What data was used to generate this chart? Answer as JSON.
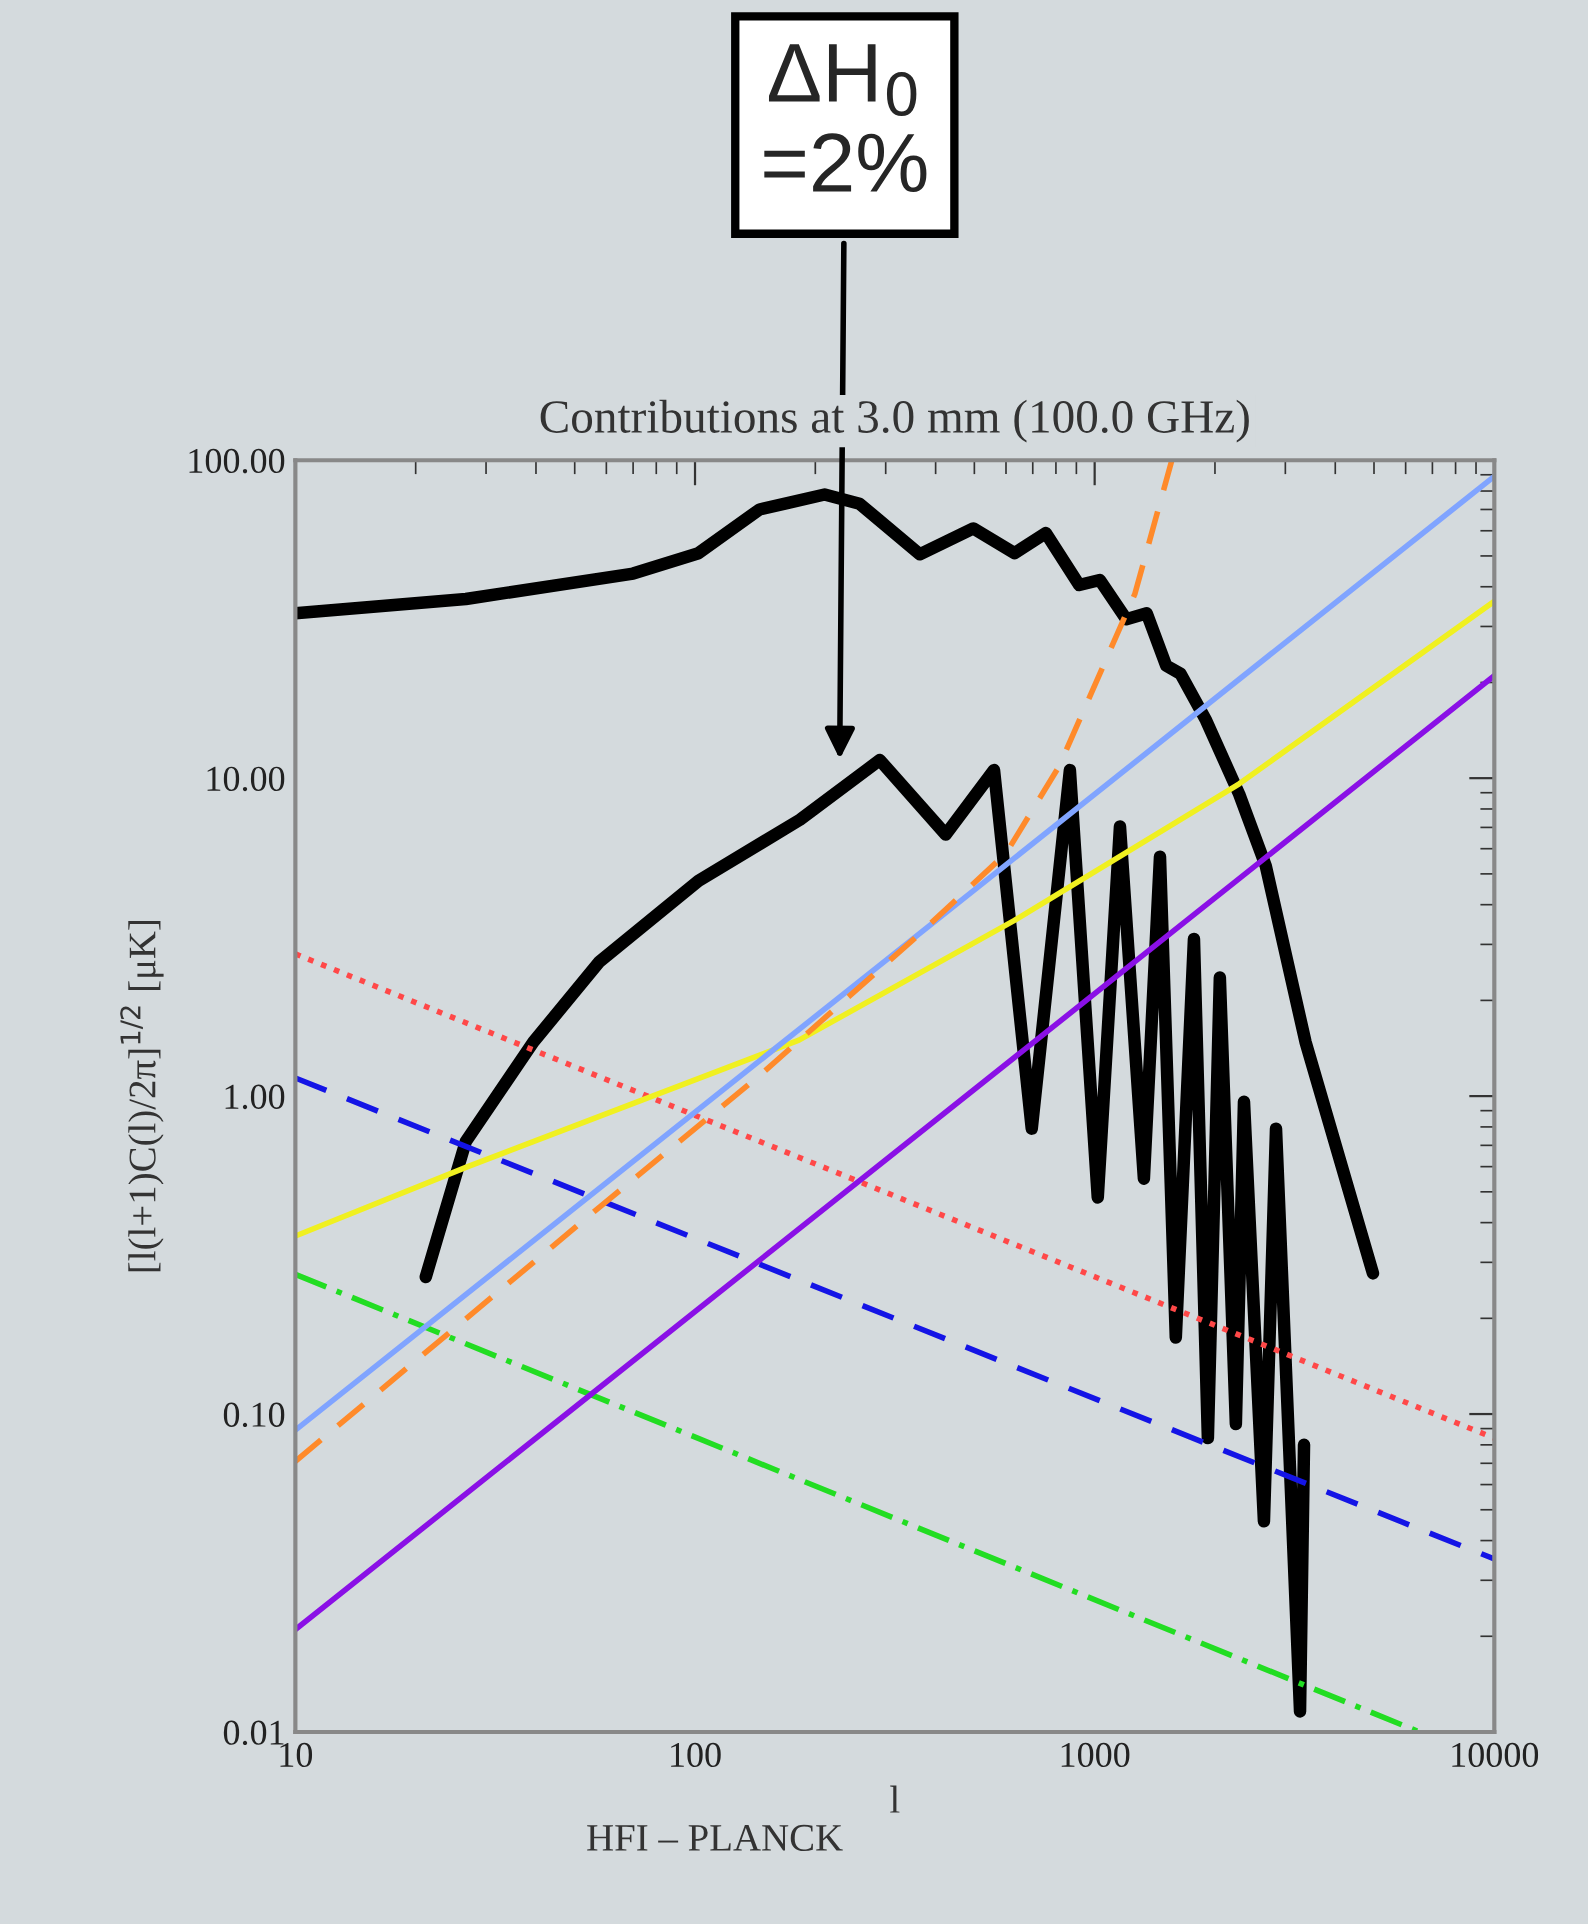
{
  "chart_data": {
    "type": "line",
    "title": "Contributions at 3.0 mm (100.0 GHz)",
    "xlabel": "l",
    "ylabel": "[l(l+1)C(l)/2π]$^{1/2}$ [μK]",
    "log": "xy",
    "xlim": [
      10,
      10000
    ],
    "ylim": [
      0.01,
      100
    ],
    "xticks": [
      10,
      100,
      1000,
      10000
    ],
    "yticks": [
      {
        "value": 0.01,
        "label": "0.01"
      },
      {
        "value": 0.1,
        "label": "0.10"
      },
      {
        "value": 1,
        "label": "1.00"
      },
      {
        "value": 10,
        "label": "10.00"
      },
      {
        "value": 100,
        "label": "100.00"
      }
    ],
    "grid": false,
    "legend": false,
    "series": [
      {
        "color": "#000000",
        "line_style": "solid",
        "x": [
          10,
          26.7,
          70,
          102,
          145,
          211,
          258,
          365,
          497,
          630,
          755,
          915,
          1030,
          1200,
          1350,
          1510,
          1640,
          1900,
          2300,
          2680,
          3370,
          4970
        ],
        "values": [
          33,
          36.6,
          44,
          51,
          70,
          78,
          73,
          50.6,
          61,
          51,
          59,
          40.5,
          42,
          31.6,
          33,
          22.6,
          21.3,
          15.2,
          8.9,
          5.3,
          1.48,
          0.277
        ]
      },
      {
        "color": "#000000",
        "line_style": "solid",
        "x": [
          21.2,
          26.7,
          39.4,
          57.7,
          102,
          183,
          290,
          424,
          560,
          696,
          867,
          1018,
          1157,
          1328,
          1457,
          1596,
          1772,
          1920,
          2057,
          2256,
          2364,
          2652,
          2843,
          3265,
          3341
        ],
        "values": [
          0.27,
          0.72,
          1.48,
          2.65,
          4.75,
          7.4,
          11.4,
          6.65,
          10.6,
          0.79,
          10.6,
          0.48,
          7.05,
          0.55,
          5.66,
          0.174,
          3.12,
          0.084,
          2.36,
          0.093,
          0.96,
          0.046,
          0.79,
          0.0116,
          0.08
        ]
      },
      {
        "color": "#ff4848",
        "line_style": "dotted",
        "x": [
          10,
          10000
        ],
        "values": [
          2.8,
          0.084
        ]
      },
      {
        "color": "#1414e6",
        "line_style": "dashed",
        "x": [
          10,
          10000
        ],
        "values": [
          1.14,
          0.035
        ]
      },
      {
        "color": "#22dd22",
        "line_style": "dashdot",
        "x": [
          10,
          6500
        ],
        "values": [
          0.275,
          0.01
        ]
      },
      {
        "color": "#f0f020",
        "line_style": "solid",
        "x": [
          10,
          27,
          182,
          630,
          2300,
          10000
        ],
        "values": [
          0.363,
          0.6,
          1.5,
          3.57,
          9.6,
          36
        ]
      },
      {
        "color": "#80a4ff",
        "line_style": "solid",
        "x": [
          10,
          10000
        ],
        "values": [
          0.089,
          89
        ]
      },
      {
        "color": "#8a10e6",
        "line_style": "solid",
        "x": [
          10,
          10000
        ],
        "values": [
          0.021,
          21
        ]
      },
      {
        "color": "#ff8a2a",
        "line_style": "dashed",
        "x": [
          10,
          58,
          145,
          355,
          600,
          815,
          1260,
          1560
        ],
        "values": [
          0.071,
          0.45,
          1.16,
          3.14,
          5.8,
          10.9,
          37.9,
          100
        ]
      }
    ],
    "annotations": [
      "ΔH$_{0}$\n=2%",
      "HFI – PLANCK"
    ]
  }
}
